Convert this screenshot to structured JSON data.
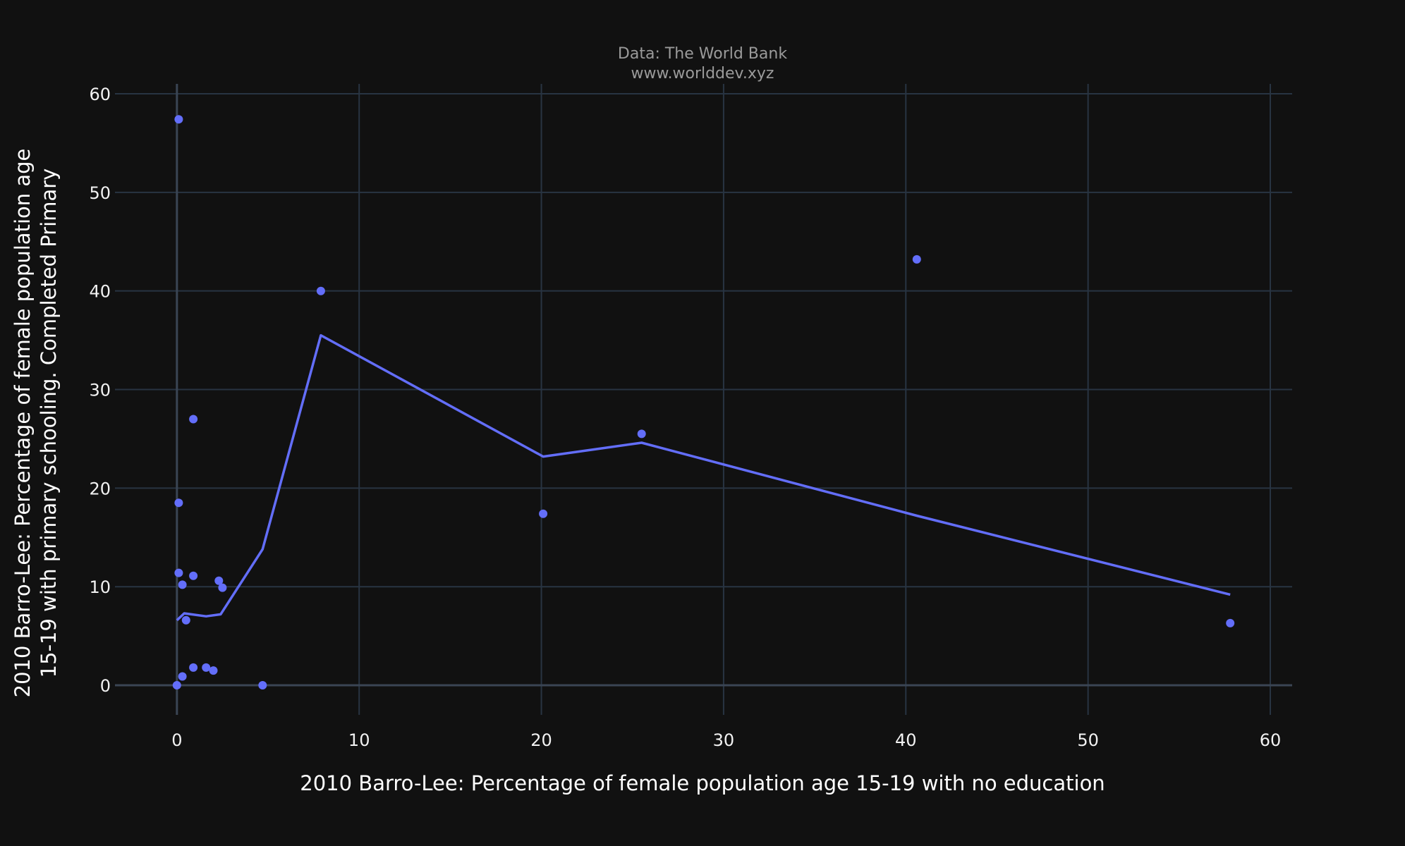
{
  "chart_data": {
    "type": "scatter",
    "title": "",
    "annotation_lines": [
      "Data: The World Bank",
      "www.worlddev.xyz"
    ],
    "xlabel": "2010 Barro-Lee: Percentage of female population age 15-19 with no education",
    "ylabel_lines": [
      "2010 Barro-Lee: Percentage of female population age",
      "15-19 with primary schooling. Completed Primary"
    ],
    "xlim": [
      -3.4,
      61.2
    ],
    "ylim": [
      -3.0,
      61.0
    ],
    "x_ticks": [
      0,
      10,
      20,
      30,
      40,
      50,
      60
    ],
    "y_ticks": [
      0,
      10,
      20,
      30,
      40,
      50,
      60
    ],
    "grid": true,
    "legend": "none",
    "colors": {
      "marker": "#636efa",
      "trend": "#636efa",
      "grid": "#283442",
      "zeroline": "#3a4554",
      "background": "#111111"
    },
    "points": [
      {
        "x": 0.1,
        "y": 57.4
      },
      {
        "x": 7.9,
        "y": 40.0
      },
      {
        "x": 40.6,
        "y": 43.2
      },
      {
        "x": 0.9,
        "y": 27.0
      },
      {
        "x": 25.5,
        "y": 25.5
      },
      {
        "x": 0.1,
        "y": 18.5
      },
      {
        "x": 20.1,
        "y": 17.4
      },
      {
        "x": 0.1,
        "y": 11.4
      },
      {
        "x": 0.9,
        "y": 11.1
      },
      {
        "x": 0.3,
        "y": 10.2
      },
      {
        "x": 2.3,
        "y": 10.6
      },
      {
        "x": 2.5,
        "y": 9.9
      },
      {
        "x": 0.5,
        "y": 6.6
      },
      {
        "x": 57.8,
        "y": 6.3
      },
      {
        "x": 0.9,
        "y": 1.8
      },
      {
        "x": 1.6,
        "y": 1.8
      },
      {
        "x": 2.0,
        "y": 1.5
      },
      {
        "x": 0.3,
        "y": 0.9
      },
      {
        "x": 0.0,
        "y": 0.0
      },
      {
        "x": 4.7,
        "y": 0.0
      }
    ],
    "trend": [
      {
        "x": 0.0,
        "y": 6.6
      },
      {
        "x": 0.4,
        "y": 7.3
      },
      {
        "x": 1.6,
        "y": 7.0
      },
      {
        "x": 2.4,
        "y": 7.2
      },
      {
        "x": 4.7,
        "y": 13.8
      },
      {
        "x": 7.9,
        "y": 35.5
      },
      {
        "x": 20.1,
        "y": 23.2
      },
      {
        "x": 25.5,
        "y": 24.6
      },
      {
        "x": 40.6,
        "y": 17.2
      },
      {
        "x": 57.8,
        "y": 9.2
      }
    ]
  }
}
